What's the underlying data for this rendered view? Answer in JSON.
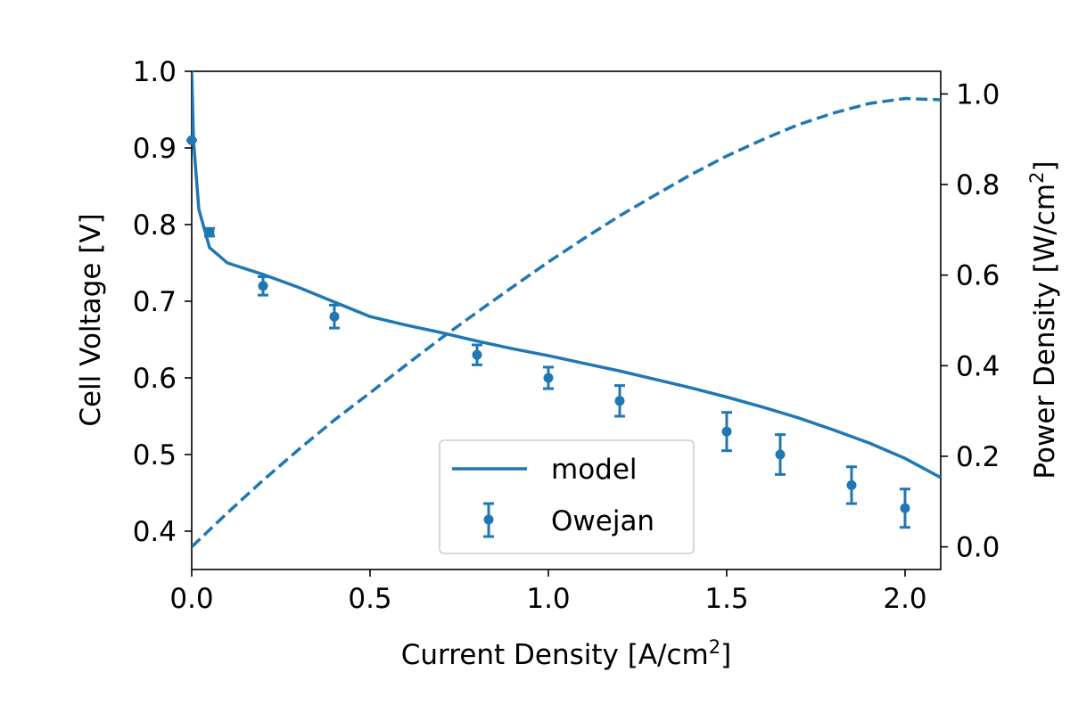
{
  "chart_data": {
    "type": "line",
    "xlabel": "Current Density [A/cm",
    "xlabel_sup": "2",
    "xlabel_end": "]",
    "ylabel": "Cell Voltage [V]",
    "y2label": "Power Density [W/cm",
    "y2label_sup": "2",
    "y2label_end": "]",
    "xlim": [
      0,
      2.1
    ],
    "ylim": [
      0.35,
      1.0
    ],
    "y2lim": [
      -0.05,
      1.05
    ],
    "xticks": [
      "0.0",
      "0.5",
      "1.0",
      "1.5",
      "2.0"
    ],
    "xtick_values": [
      0,
      0.5,
      1.0,
      1.5,
      2.0
    ],
    "yticks": [
      "0.4",
      "0.5",
      "0.6",
      "0.7",
      "0.8",
      "0.9",
      "1.0"
    ],
    "ytick_values": [
      0.4,
      0.5,
      0.6,
      0.7,
      0.8,
      0.9,
      1.0
    ],
    "y2ticks": [
      "0.0",
      "0.2",
      "0.4",
      "0.6",
      "0.8",
      "1.0"
    ],
    "y2tick_values": [
      0.0,
      0.2,
      0.4,
      0.6,
      0.8,
      1.0
    ],
    "grid": false,
    "legend_position": "lower-center",
    "color": "#1f77b4",
    "series": [
      {
        "name": "model",
        "style": "solid",
        "axis": "left",
        "x": [
          0.0,
          0.005,
          0.02,
          0.05,
          0.1,
          0.2,
          0.3,
          0.4,
          0.5,
          0.6,
          0.7,
          0.8,
          0.9,
          1.0,
          1.1,
          1.2,
          1.3,
          1.4,
          1.5,
          1.6,
          1.7,
          1.8,
          1.9,
          2.0,
          2.1
        ],
        "y": [
          1.0,
          0.91,
          0.82,
          0.77,
          0.75,
          0.735,
          0.718,
          0.699,
          0.68,
          0.669,
          0.659,
          0.648,
          0.638,
          0.629,
          0.619,
          0.609,
          0.598,
          0.587,
          0.575,
          0.562,
          0.548,
          0.532,
          0.515,
          0.495,
          0.47
        ]
      },
      {
        "name": "",
        "style": "dashed",
        "axis": "right",
        "x": [
          0.0,
          0.1,
          0.2,
          0.3,
          0.4,
          0.5,
          0.6,
          0.7,
          0.8,
          0.9,
          1.0,
          1.1,
          1.2,
          1.3,
          1.4,
          1.5,
          1.6,
          1.7,
          1.8,
          1.9,
          2.0,
          2.1
        ],
        "y": [
          0.0,
          0.075,
          0.147,
          0.215,
          0.28,
          0.34,
          0.401,
          0.461,
          0.518,
          0.574,
          0.629,
          0.681,
          0.731,
          0.777,
          0.822,
          0.863,
          0.899,
          0.932,
          0.958,
          0.979,
          0.99,
          0.987
        ]
      },
      {
        "name": "Owejan",
        "style": "errorbar",
        "axis": "left",
        "x": [
          0.0,
          0.05,
          0.2,
          0.4,
          0.8,
          1.0,
          1.2,
          1.5,
          1.65,
          1.85,
          2.0
        ],
        "y": [
          0.91,
          0.79,
          0.72,
          0.68,
          0.63,
          0.6,
          0.57,
          0.53,
          0.5,
          0.46,
          0.43
        ],
        "err": [
          0.0,
          0.005,
          0.012,
          0.015,
          0.013,
          0.014,
          0.02,
          0.025,
          0.026,
          0.024,
          0.025
        ]
      }
    ]
  }
}
